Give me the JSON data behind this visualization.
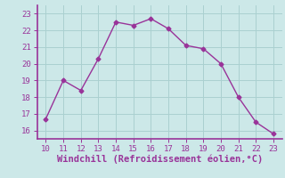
{
  "x": [
    10,
    11,
    12,
    13,
    14,
    15,
    16,
    17,
    18,
    19,
    20,
    21,
    22,
    23
  ],
  "y": [
    16.7,
    19.0,
    18.4,
    20.3,
    22.5,
    22.3,
    22.7,
    22.1,
    21.1,
    20.9,
    20.0,
    18.0,
    16.5,
    15.8
  ],
  "line_color": "#993399",
  "marker": "D",
  "marker_size": 2.5,
  "linewidth": 1.0,
  "bg_color": "#cce8e8",
  "grid_color": "#aad0d0",
  "spine_color": "#993399",
  "tick_color": "#993399",
  "label_color": "#993399",
  "xlabel": "Windchill (Refroidissement éolien,°C)",
  "xlim": [
    9.5,
    23.5
  ],
  "ylim": [
    15.5,
    23.5
  ],
  "xticks": [
    10,
    11,
    12,
    13,
    14,
    15,
    16,
    17,
    18,
    19,
    20,
    21,
    22,
    23
  ],
  "yticks": [
    16,
    17,
    18,
    19,
    20,
    21,
    22,
    23
  ],
  "xlabel_fontsize": 7.5,
  "tick_fontsize": 6.5,
  "font_family": "monospace"
}
